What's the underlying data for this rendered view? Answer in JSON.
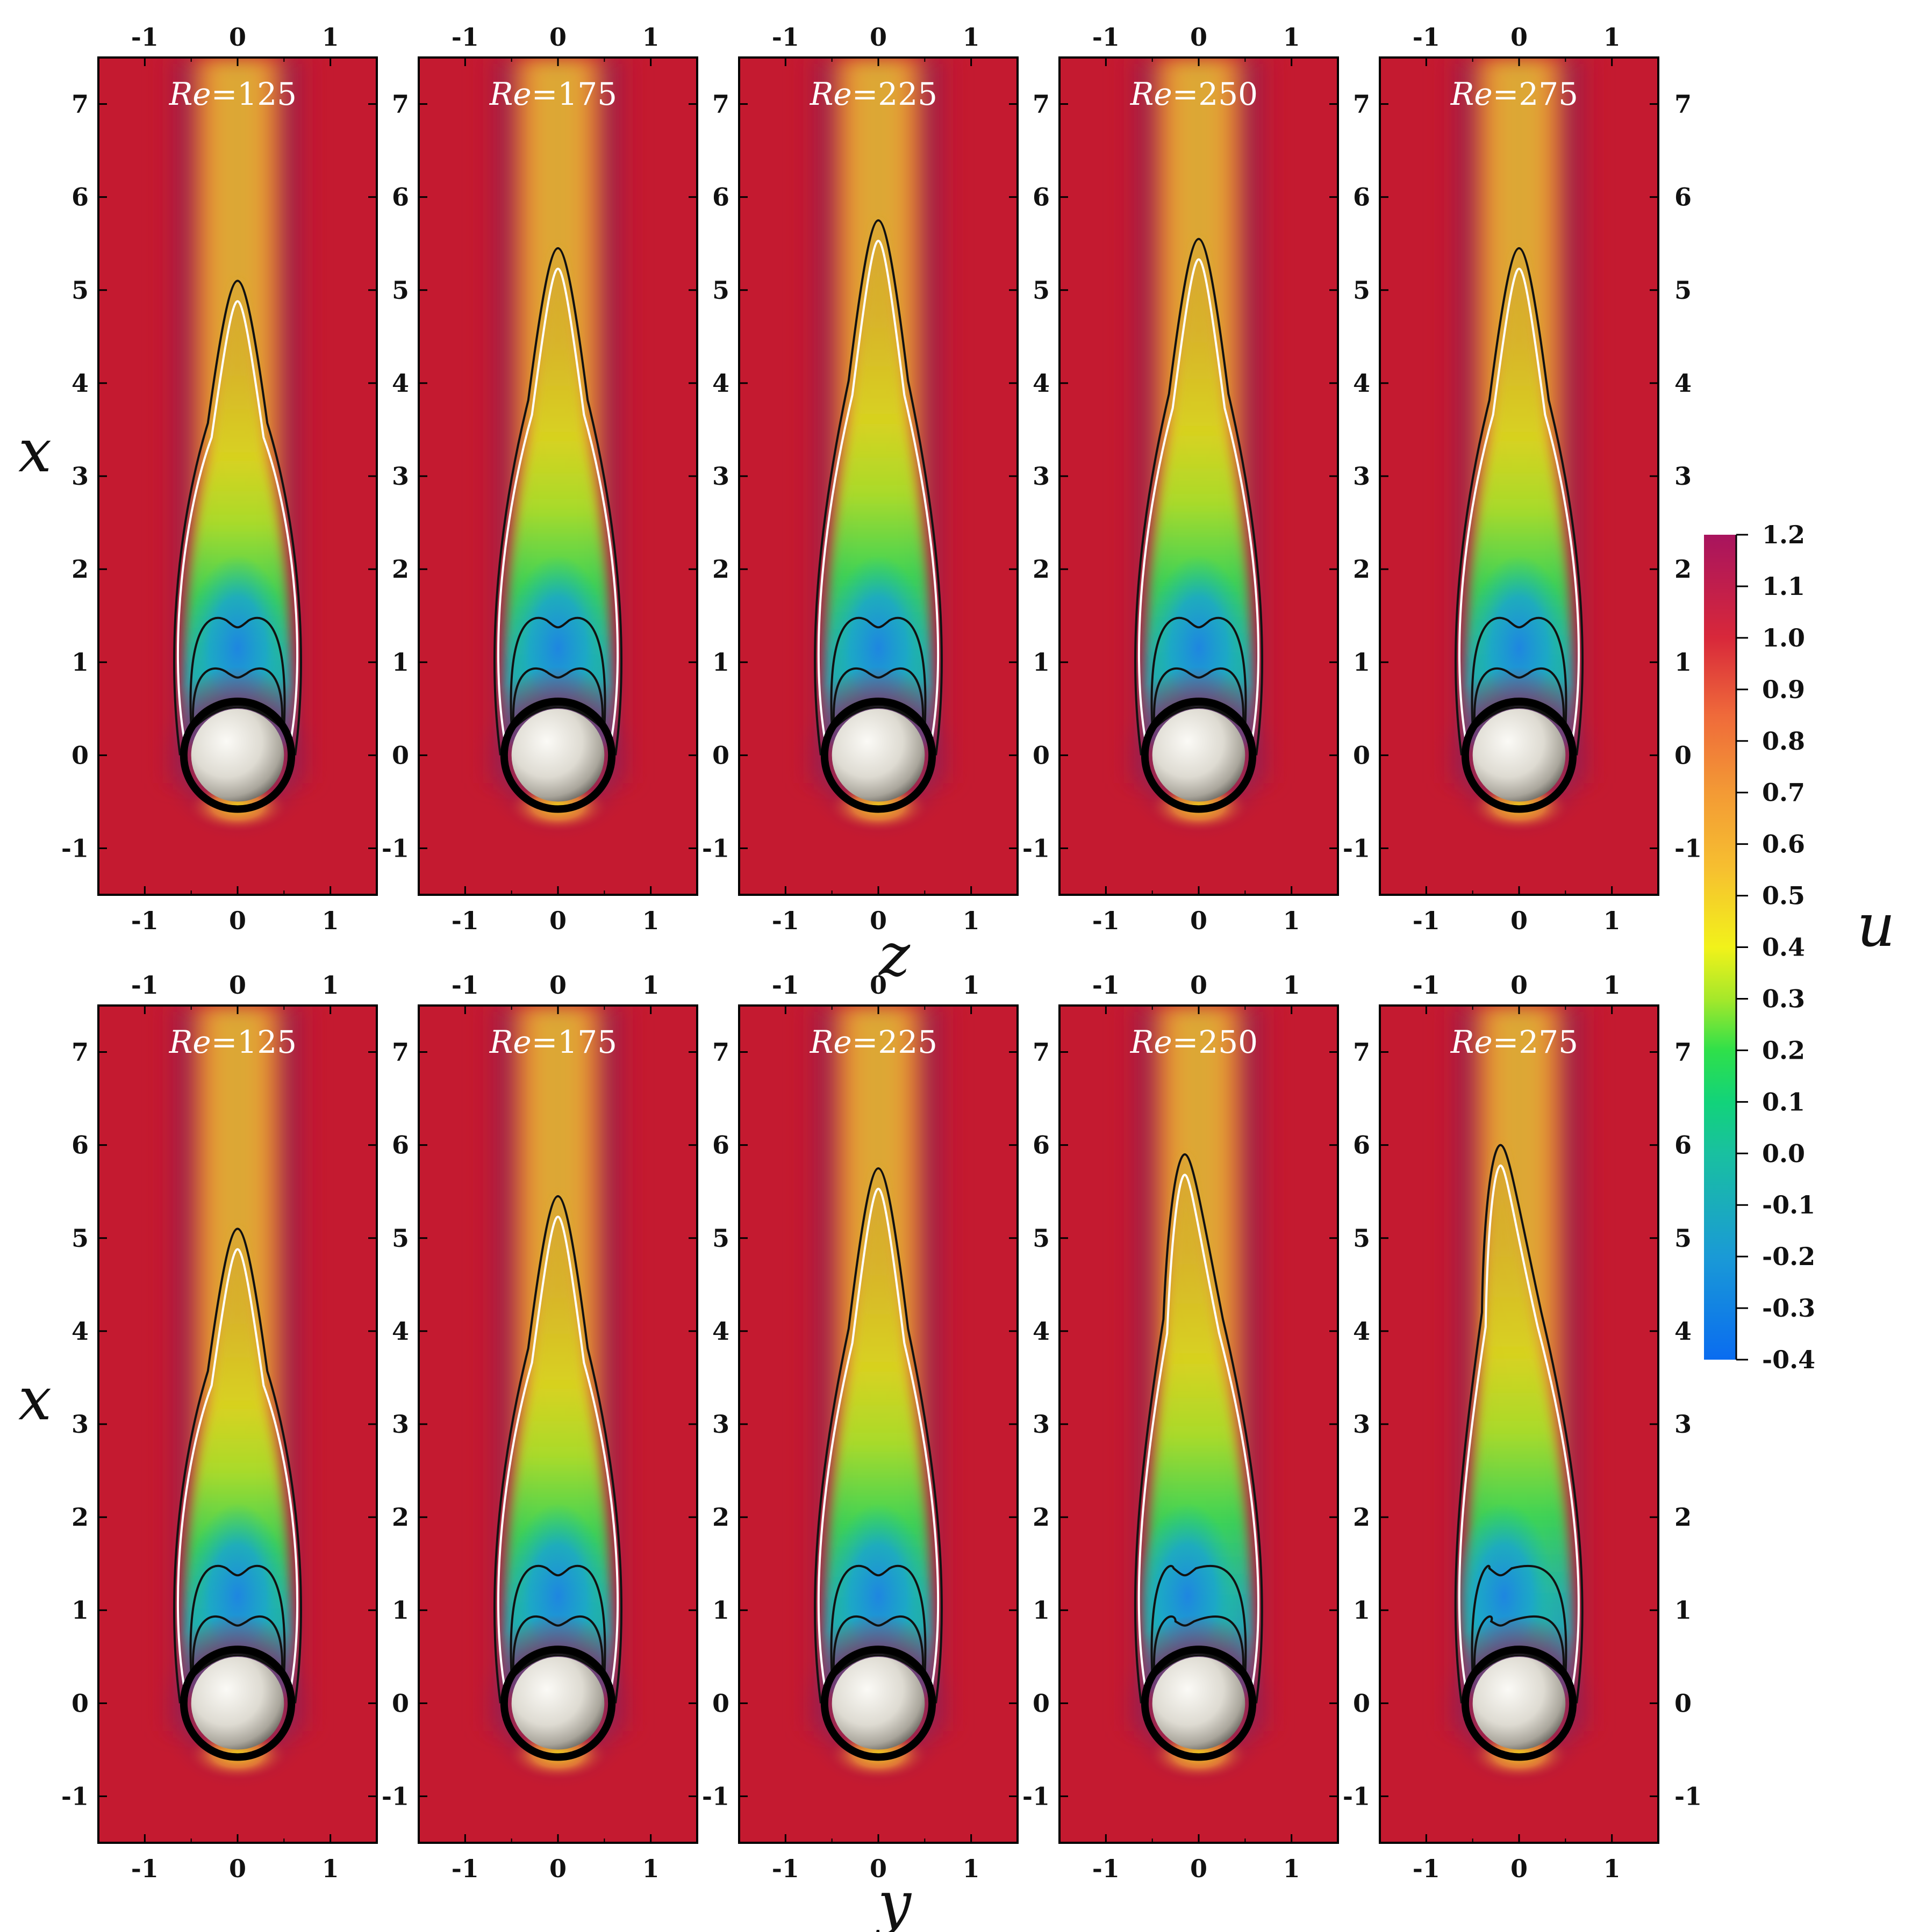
{
  "chart_data": {
    "type": "heatmap",
    "variable": "u",
    "colorbar": {
      "label": "u",
      "ticks": [
        "1.2",
        "1.1",
        "1.0",
        "0.9",
        "0.8",
        "0.7",
        "0.6",
        "0.5",
        "0.4",
        "0.3",
        "0.2",
        "0.1",
        "0.0",
        "-0.1",
        "-0.2",
        "-0.3",
        "-0.4"
      ],
      "range": [
        -0.4,
        1.2
      ],
      "stops": [
        {
          "v": -0.4,
          "c": "#0a6cf0"
        },
        {
          "v": -0.2,
          "c": "#1a9ad6"
        },
        {
          "v": 0.0,
          "c": "#19c0a0"
        },
        {
          "v": 0.1,
          "c": "#12d37a"
        },
        {
          "v": 0.2,
          "c": "#2fe04a"
        },
        {
          "v": 0.3,
          "c": "#a6e82a"
        },
        {
          "v": 0.4,
          "c": "#f2f21a"
        },
        {
          "v": 0.55,
          "c": "#f6c030"
        },
        {
          "v": 0.7,
          "c": "#f39a35"
        },
        {
          "v": 0.85,
          "c": "#ef6a3a"
        },
        {
          "v": 1.0,
          "c": "#d8283a"
        },
        {
          "v": 1.2,
          "c": "#a8145e"
        }
      ]
    },
    "rows": [
      {
        "xlabel": "z",
        "ylabel": "x",
        "panels": [
          {
            "re": "125",
            "recirc_length": 5.1,
            "asym": 0.0
          },
          {
            "re": "175",
            "recirc_length": 5.45,
            "asym": 0.0
          },
          {
            "re": "225",
            "recirc_length": 5.75,
            "asym": 0.0
          },
          {
            "re": "250",
            "recirc_length": 5.55,
            "asym": 0.0
          },
          {
            "re": "275",
            "recirc_length": 5.45,
            "asym": 0.0
          }
        ]
      },
      {
        "xlabel": "y",
        "ylabel": "x",
        "panels": [
          {
            "re": "125",
            "recirc_length": 5.1,
            "asym": 0.0
          },
          {
            "re": "175",
            "recirc_length": 5.45,
            "asym": 0.0
          },
          {
            "re": "225",
            "recirc_length": 5.75,
            "asym": 0.0
          },
          {
            "re": "250",
            "recirc_length": 5.9,
            "asym": -0.15
          },
          {
            "re": "275",
            "recirc_length": 6.0,
            "asym": -0.2
          }
        ]
      }
    ],
    "re_prefix": "Re",
    "re_sep": "=",
    "xticks": [
      "-1",
      "0",
      "1"
    ],
    "yticks": [
      "-1",
      "0",
      "1",
      "2",
      "3",
      "4",
      "5",
      "6",
      "7"
    ],
    "xlim": [
      -1.5,
      1.5
    ],
    "ylim": [
      -1.5,
      7.5
    ],
    "colors": {
      "freestream": "#c41a30",
      "halo": "#8e1a55",
      "wake_core": "#d8a631",
      "sphere": "#e7e5df",
      "contour": "#111111",
      "contour_white": "#ffffff"
    }
  }
}
